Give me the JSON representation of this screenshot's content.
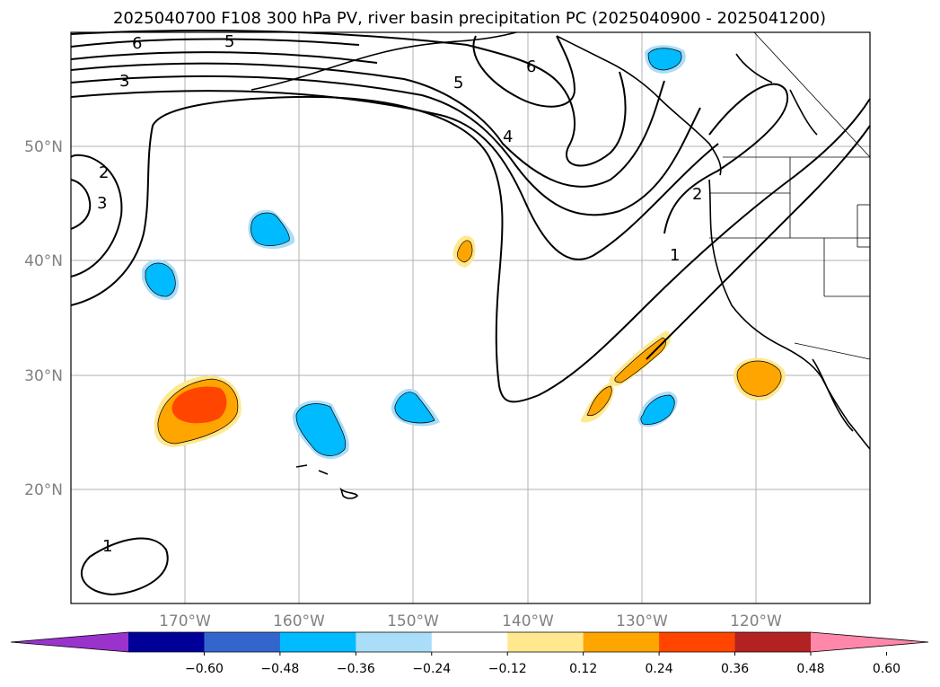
{
  "title": "2025040700 F108 300 hPa PV, river basin precipitation PC (2025040900 - 2025041200)",
  "lat_labels": [
    "50°N",
    "40°N",
    "30°N",
    "20°N"
  ],
  "lon_labels": [
    "170°W",
    "160°W",
    "150°W",
    "140°W",
    "130°W",
    "120°W"
  ],
  "colorbar": {
    "colors": [
      "#9933cc",
      "#000099",
      "#3366cc",
      "#00bbff",
      "#aaddf8",
      "#ffffff",
      "#ffe88e",
      "#ffa500",
      "#ff4500",
      "#b22222",
      "#ff88aa"
    ],
    "tick_labels": [
      "−0.60",
      "−0.48",
      "−0.36",
      "−0.24",
      "−0.12",
      "0.12",
      "0.24",
      "0.36",
      "0.48",
      "0.60"
    ]
  },
  "contour_labels": [
    "6",
    "5",
    "3",
    "5",
    "4",
    "6",
    "2",
    "3",
    "2",
    "1",
    "1"
  ]
}
